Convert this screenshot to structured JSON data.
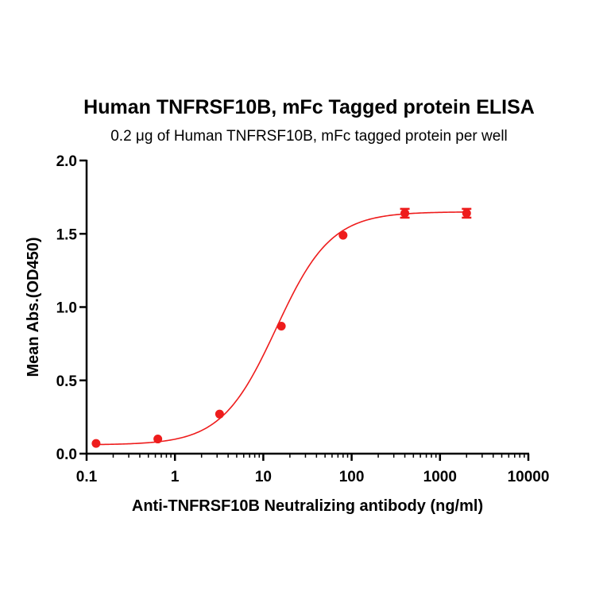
{
  "chart_data": {
    "type": "scatter",
    "title": "Human TNFRSF10B,  mFc Tagged protein ELISA",
    "subtitle": "0.2 μg of Human TNFRSF10B, mFc tagged protein per well",
    "xlabel": "Anti-TNFRSF10B Neutralizing antibody (ng/ml)",
    "ylabel": "Mean Abs.(OD450)",
    "x_scale": "log",
    "xlim": [
      0.1,
      10000
    ],
    "ylim": [
      0.0,
      2.0
    ],
    "x_ticks": [
      0.1,
      1,
      10,
      100,
      1000,
      10000
    ],
    "x_tick_labels": [
      "0.1",
      "1",
      "10",
      "100",
      "1000",
      "10000"
    ],
    "y_ticks": [
      0.0,
      0.5,
      1.0,
      1.5,
      2.0
    ],
    "y_tick_labels": [
      "0.0",
      "0.5",
      "1.0",
      "1.5",
      "2.0"
    ],
    "grid": false,
    "legend": "none",
    "series": [
      {
        "color": "#ee1c1c",
        "marker": "circle",
        "x": [
          0.128,
          0.64,
          3.2,
          16,
          80,
          400,
          2000
        ],
        "y": [
          0.07,
          0.1,
          0.27,
          0.87,
          1.49,
          1.64,
          1.64
        ],
        "error_bars": [
          0,
          0,
          0,
          0,
          0,
          0.03,
          0.03
        ],
        "fit": "4PL sigmoid"
      }
    ]
  }
}
